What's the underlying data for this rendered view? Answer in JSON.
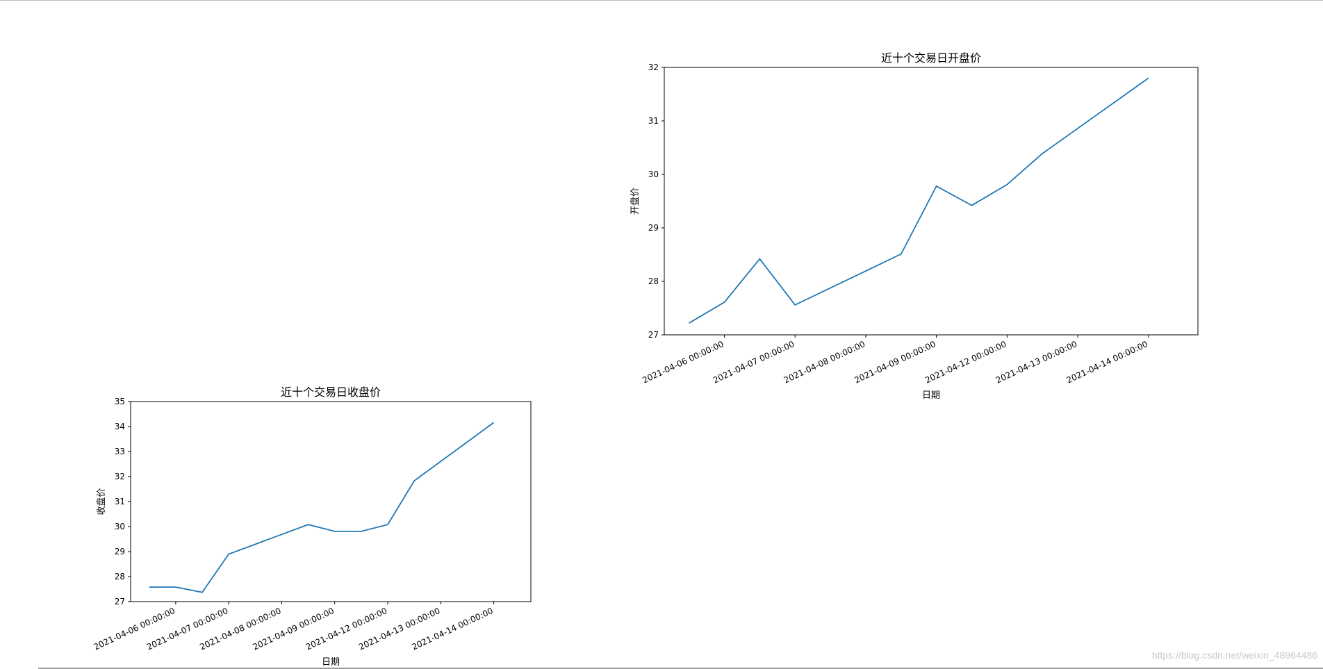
{
  "chart_data": [
    {
      "type": "line",
      "title": "近十个交易日收盘价",
      "xlabel": "日期",
      "ylabel": "收盘价",
      "ylim": [
        27,
        35
      ],
      "yticks": [
        27,
        28,
        29,
        30,
        31,
        32,
        33,
        34,
        35
      ],
      "xlim": [
        -0.7,
        14.4
      ],
      "xtick_positions": [
        1,
        3,
        5,
        7,
        9,
        11,
        13
      ],
      "xtick_labels": [
        "2021-04-06 00:00:00",
        "2021-04-07 00:00:00",
        "2021-04-08 00:00:00",
        "2021-04-09 00:00:00",
        "2021-04-12 00:00:00",
        "2021-04-13 00:00:00",
        "2021-04-14 00:00:00"
      ],
      "x": [
        0,
        1,
        2,
        3,
        6,
        7,
        8,
        9,
        10,
        13
      ],
      "values": [
        27.58,
        27.58,
        27.37,
        28.9,
        30.08,
        29.81,
        29.81,
        30.08,
        31.83,
        34.16
      ],
      "color": "#1f77b4",
      "grid": false
    },
    {
      "type": "line",
      "title": "近十个交易日开盘价",
      "xlabel": "日期",
      "ylabel": "开盘价",
      "ylim": [
        27,
        32
      ],
      "yticks": [
        27,
        28,
        29,
        30,
        31,
        32
      ],
      "xlim": [
        -0.7,
        14.4
      ],
      "xtick_positions": [
        1,
        3,
        5,
        7,
        9,
        11,
        13
      ],
      "xtick_labels": [
        "2021-04-06 00:00:00",
        "2021-04-07 00:00:00",
        "2021-04-08 00:00:00",
        "2021-04-09 00:00:00",
        "2021-04-12 00:00:00",
        "2021-04-13 00:00:00",
        "2021-04-14 00:00:00"
      ],
      "x": [
        0,
        1,
        2,
        3,
        6,
        7,
        8,
        9,
        10,
        13
      ],
      "values": [
        27.22,
        27.61,
        28.42,
        27.56,
        28.51,
        29.78,
        29.42,
        29.81,
        30.39,
        31.8
      ],
      "color": "#1f77b4",
      "grid": false
    }
  ],
  "watermark": "https://blog.csdn.net/weixin_48964486"
}
